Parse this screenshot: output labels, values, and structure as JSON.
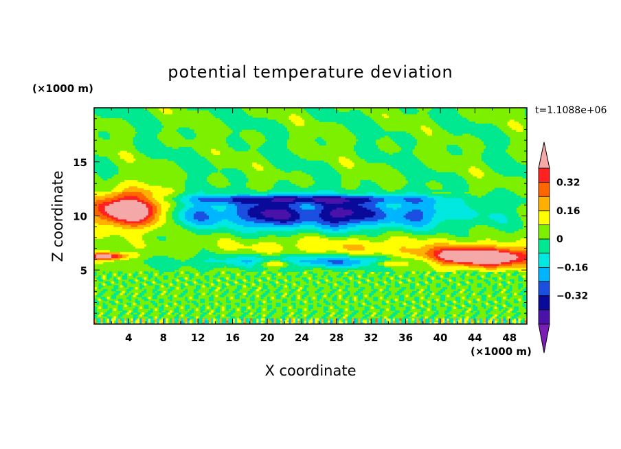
{
  "chart_data": {
    "type": "heatmap",
    "title": "potential temperature deviation",
    "xlabel": "X coordinate",
    "ylabel": "Z coordinate",
    "x_unit": "(×1000 m)",
    "y_unit": "(×1000 m)",
    "time_label": "t=1.1088e+06",
    "xlim": [
      0,
      50
    ],
    "ylim": [
      0,
      20
    ],
    "x_ticks": [
      "4",
      "8",
      "12",
      "16",
      "20",
      "24",
      "28",
      "32",
      "36",
      "40",
      "44",
      "48"
    ],
    "y_ticks": [
      "5",
      "10",
      "15"
    ],
    "colorbar": {
      "levels": [
        -0.48,
        -0.4,
        -0.32,
        -0.24,
        -0.16,
        -0.08,
        0,
        0.08,
        0.16,
        0.24,
        0.32,
        0.4,
        0.48
      ],
      "colors": [
        "#7a1fb5",
        "#4a12a8",
        "#0a0a9a",
        "#1a4fe0",
        "#00b5ff",
        "#00e8e0",
        "#00e890",
        "#7df000",
        "#ffff00",
        "#ffb000",
        "#ff6600",
        "#ff2020",
        "#f4a8a8"
      ],
      "labels": [
        "0.32",
        "0.16",
        "0",
        "−0.16",
        "−0.32"
      ],
      "label_values": [
        0.32,
        0.16,
        0,
        -0.16,
        -0.32
      ]
    }
  }
}
